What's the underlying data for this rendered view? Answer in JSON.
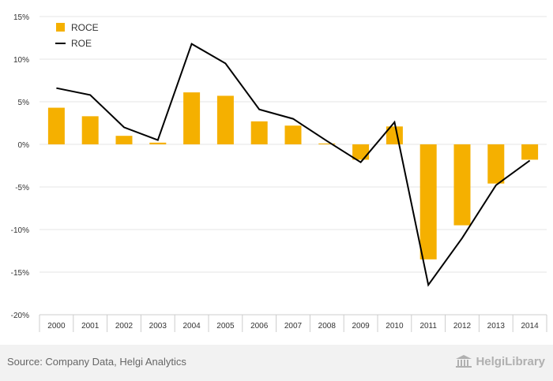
{
  "chart_data": {
    "type": "bar",
    "categories": [
      "2000",
      "2001",
      "2002",
      "2003",
      "2004",
      "2005",
      "2006",
      "2007",
      "2008",
      "2009",
      "2010",
      "2011",
      "2012",
      "2013",
      "2014"
    ],
    "series": [
      {
        "name": "ROCE",
        "kind": "bar",
        "color": "#f5b000",
        "values": [
          4.3,
          3.3,
          1.0,
          0.2,
          6.1,
          5.7,
          2.7,
          2.2,
          0.1,
          -1.8,
          2.1,
          -13.5,
          -9.5,
          -4.6,
          -1.8
        ]
      },
      {
        "name": "ROE",
        "kind": "line",
        "color": "#000000",
        "values": [
          6.6,
          5.8,
          2.0,
          0.5,
          11.8,
          9.5,
          4.1,
          3.0,
          0.4,
          -2.1,
          2.6,
          -16.5,
          -11.0,
          -4.8,
          -1.9
        ]
      }
    ],
    "yticks": [
      "-20%",
      "-15%",
      "-10%",
      "-5%",
      "0%",
      "5%",
      "10%",
      "15%"
    ],
    "ytick_values": [
      -20,
      -15,
      -10,
      -5,
      0,
      5,
      10,
      15
    ],
    "ylim": [
      -20,
      15
    ],
    "grid": true,
    "legend_position": "top-left"
  },
  "footer": {
    "source": "Source: Company Data, Helgi Analytics",
    "brand": "HelgiLibrary"
  },
  "colors": {
    "grid": "#e6e6e6",
    "axis": "#cccccc",
    "footer_bg": "#f2f2f2"
  },
  "icons": {
    "brand_logo": "library-building-icon"
  }
}
